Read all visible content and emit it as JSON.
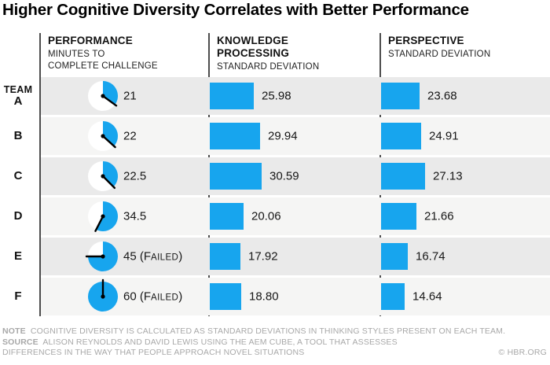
{
  "title": "Higher Cognitive Diversity Correlates with Better Performance",
  "team_header": "TEAM",
  "columns": [
    {
      "title": "PERFORMANCE",
      "subtitle": "MINUTES TO\nCOMPLETE CHALLENGE"
    },
    {
      "title": "KNOWLEDGE\nPROCESSING",
      "subtitle": "STANDARD DEVIATION"
    },
    {
      "title": "PERSPECTIVE",
      "subtitle": "STANDARD DEVIATION"
    }
  ],
  "chart_data": {
    "type": "table",
    "title": "Higher Cognitive Diversity Correlates with Better Performance",
    "teams": [
      "A",
      "B",
      "C",
      "D",
      "E",
      "F"
    ],
    "series": [
      {
        "name": "Performance",
        "unit": "minutes to complete challenge",
        "render": "pie-clock",
        "max_minutes": 60,
        "values": [
          21,
          22,
          22.5,
          34.5,
          45,
          60
        ],
        "labels": [
          "21",
          "22",
          "22.5",
          "34.5",
          "45",
          "60"
        ],
        "failed": [
          false,
          false,
          false,
          false,
          true,
          true
        ],
        "failed_text": "Failed"
      },
      {
        "name": "Knowledge processing",
        "unit": "standard deviation",
        "render": "bar",
        "values": [
          25.98,
          29.94,
          30.59,
          20.06,
          17.92,
          18.8
        ],
        "labels": [
          "25.98",
          "29.94",
          "30.59",
          "20.06",
          "17.92",
          "18.80"
        ]
      },
      {
        "name": "Perspective",
        "unit": "standard deviation",
        "render": "bar",
        "values": [
          23.68,
          24.91,
          27.13,
          21.66,
          16.74,
          14.64
        ],
        "labels": [
          "23.68",
          "24.91",
          "27.13",
          "21.66",
          "16.74",
          "14.64"
        ]
      }
    ]
  },
  "footer": {
    "note_label": "NOTE",
    "note": "COGNITIVE DIVERSITY IS CALCULATED AS STANDARD DEVIATIONS IN THINKING STYLES PRESENT ON EACH TEAM.",
    "source_label": "SOURCE",
    "source_line1": "ALISON REYNOLDS AND DAVID LEWIS USING THE AEM CUBE, A TOOL THAT ASSESSES",
    "source_line2": "DIFFERENCES IN THE WAY THAT PEOPLE APPROACH NOVEL SITUATIONS",
    "copyright": "© HBR.ORG"
  },
  "colors": {
    "accent_blue": "#17A5EE",
    "row_shade_dark": "#EAEAEA",
    "row_shade_light": "#F5F5F4",
    "divider": "#4D4D4D",
    "hand_black": "#000000",
    "footer_gray": "#A8A8A8"
  }
}
